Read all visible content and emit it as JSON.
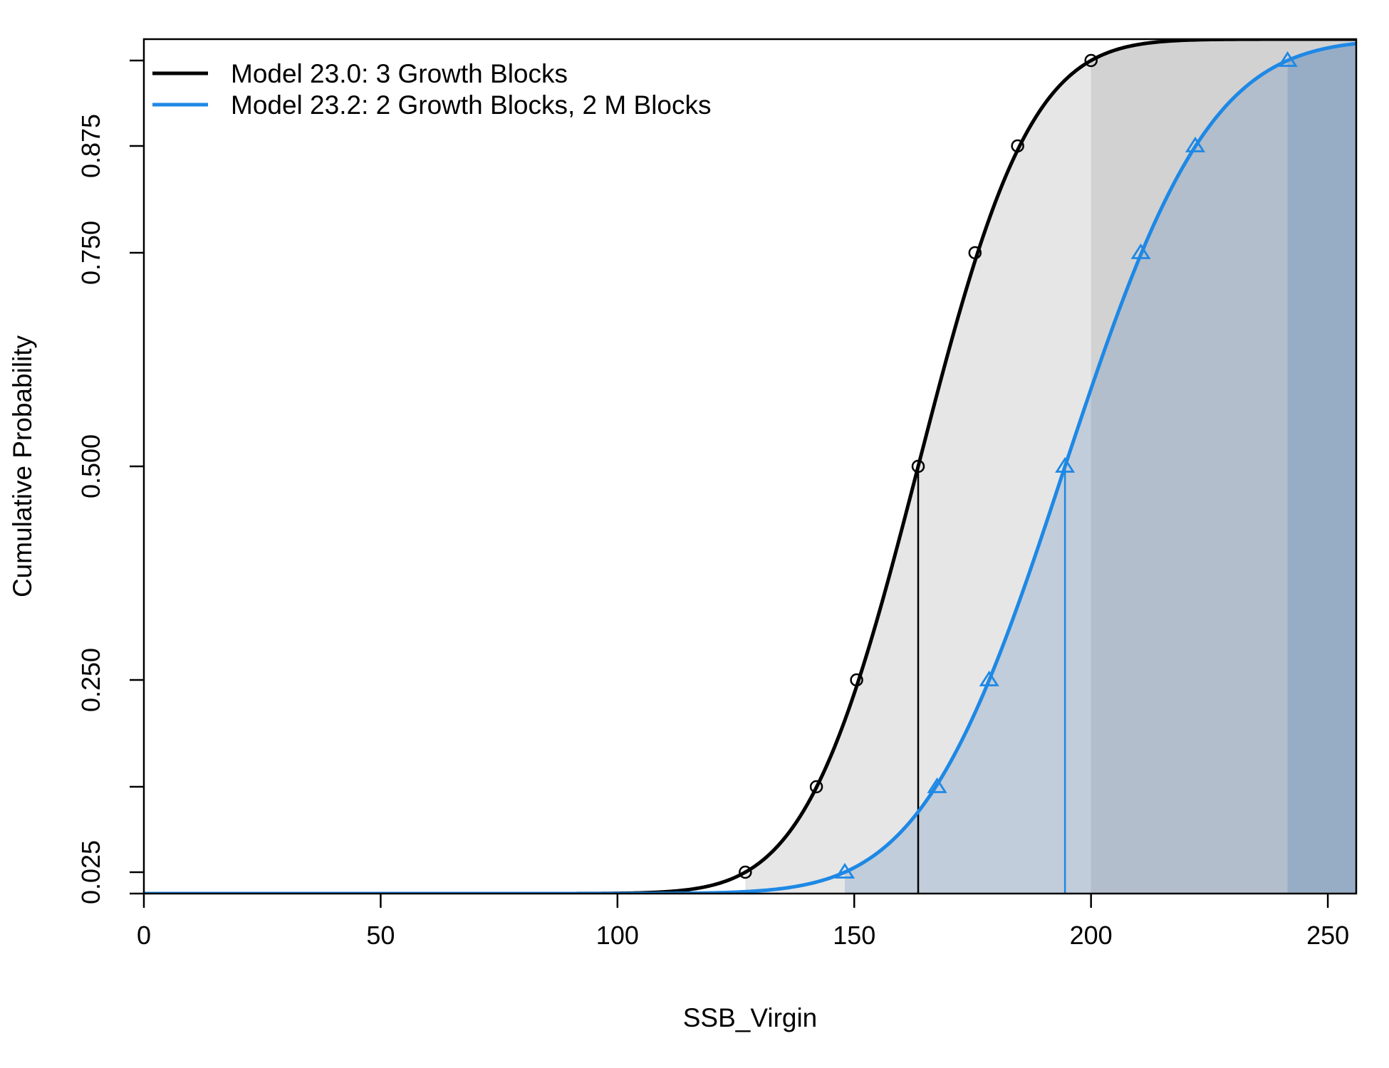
{
  "chart_data": {
    "type": "line",
    "xlabel": "SSB_Virgin",
    "ylabel": "Cumulative Probability",
    "xlim": [
      0,
      256
    ],
    "ylim": [
      0,
      1
    ],
    "x_ticks": [
      0,
      50,
      100,
      150,
      200,
      250
    ],
    "x_tick_labels": [
      "0",
      "50",
      "100",
      "150",
      "200",
      "250"
    ],
    "y_ticks": [
      0,
      0.025,
      0.125,
      0.25,
      0.5,
      0.75,
      0.875,
      0.975
    ],
    "y_tick_labels": [
      "0.025",
      "0.250",
      "0.500",
      "0.750",
      "0.875"
    ],
    "y_tick_label_values": [
      0.025,
      0.25,
      0.5,
      0.75,
      0.875
    ],
    "legend_position": "top-left",
    "series": [
      {
        "name": "Model 23.0: 3 Growth Blocks",
        "color": "#000000",
        "marker": "circle",
        "quantiles": [
          0.025,
          0.125,
          0.25,
          0.5,
          0.75,
          0.875,
          0.975
        ],
        "quantile_values": [
          127,
          142,
          150.5,
          163.5,
          175.5,
          184.5,
          200
        ],
        "median": 163.5,
        "ci_upper": 200
      },
      {
        "name": "Model 23.2: 2 Growth Blocks, 2 M Blocks",
        "color": "#1e88e5",
        "marker": "triangle",
        "quantiles": [
          0.025,
          0.125,
          0.25,
          0.5,
          0.75,
          0.875,
          0.975
        ],
        "quantile_values": [
          148,
          167.5,
          178.5,
          194.5,
          210.5,
          222,
          241.5
        ],
        "median": 194.5,
        "ci_upper": 241.5
      }
    ]
  }
}
